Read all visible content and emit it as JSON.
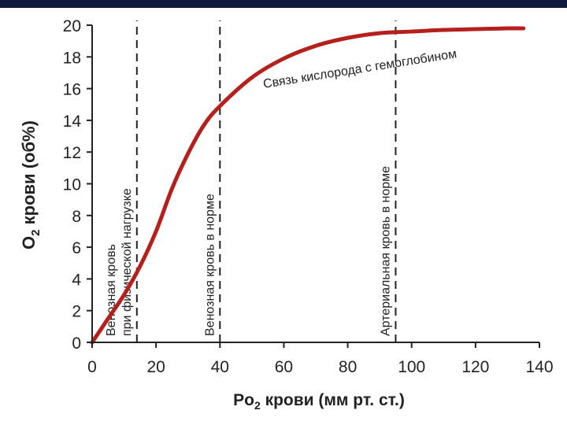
{
  "chart_data": {
    "type": "line",
    "title": "",
    "xlabel": {
      "main": "Po",
      "sub": "2",
      "rest": " крови (мм рт. ст.)"
    },
    "ylabel": {
      "main": "O",
      "sub": "2",
      "rest": " крови (об%)"
    },
    "xlim": [
      0,
      140
    ],
    "ylim": [
      0,
      20
    ],
    "x_ticks": [
      0,
      20,
      40,
      60,
      80,
      100,
      120,
      140
    ],
    "y_ticks": [
      0,
      2,
      4,
      6,
      8,
      10,
      12,
      14,
      16,
      18,
      20
    ],
    "grid": false,
    "series": [
      {
        "name": "",
        "color": "#b5201c",
        "x": [
          0,
          5,
          10,
          15,
          20,
          25,
          30,
          35,
          40,
          50,
          60,
          70,
          80,
          90,
          100,
          110,
          120,
          130,
          135
        ],
        "y": [
          0,
          1.5,
          3.0,
          4.8,
          7.0,
          9.7,
          11.9,
          13.7,
          14.9,
          16.7,
          17.9,
          18.7,
          19.2,
          19.5,
          19.6,
          19.7,
          19.75,
          19.8,
          19.8
        ]
      }
    ],
    "curve_label": {
      "text": "Связь кислорода с гемоглобином",
      "x": 84,
      "y": 17.0
    },
    "reference_lines": [
      {
        "x": 14,
        "lines": [
          "Венозная кровь",
          "при физической нагрузке"
        ]
      },
      {
        "x": 40,
        "lines": [
          "Венозная кровь в норме"
        ]
      },
      {
        "x": 95,
        "lines": [
          "Артериальная кровь в норме"
        ]
      }
    ],
    "colors": {
      "curve": "#b5201c",
      "axis": "#222222",
      "header": "#0f1a3c"
    }
  }
}
